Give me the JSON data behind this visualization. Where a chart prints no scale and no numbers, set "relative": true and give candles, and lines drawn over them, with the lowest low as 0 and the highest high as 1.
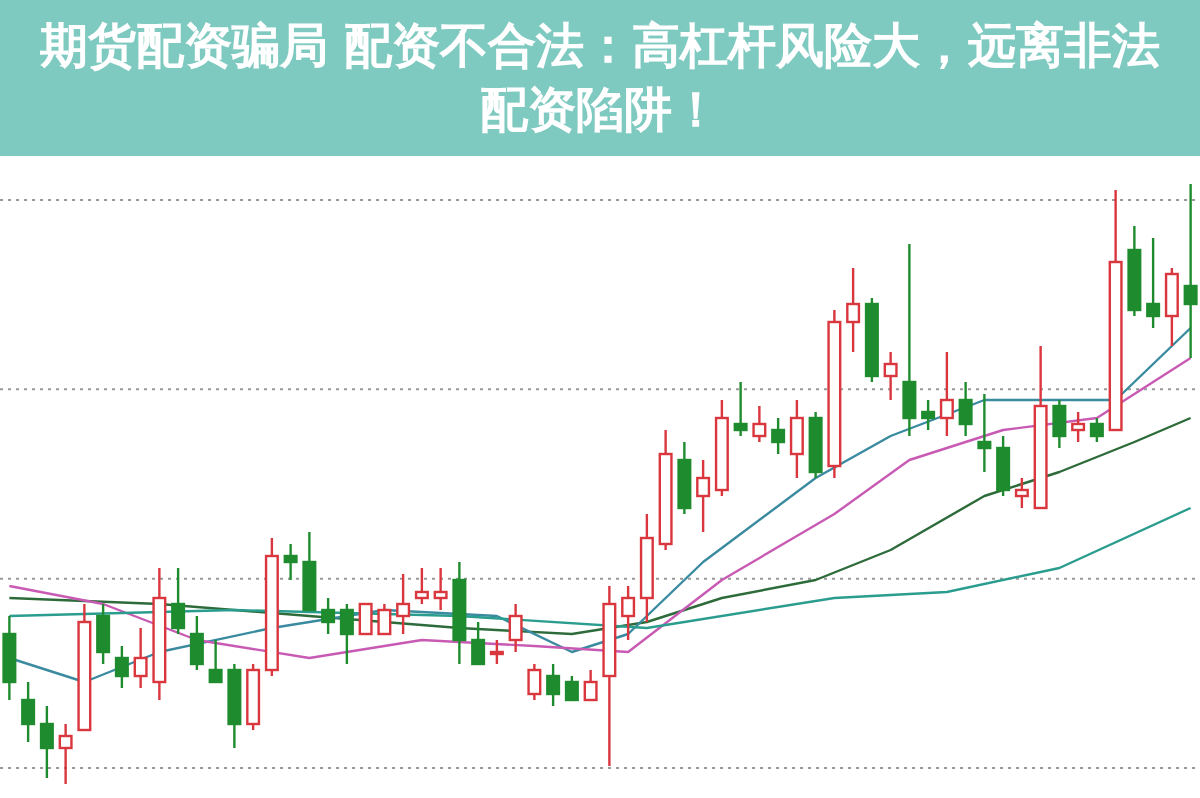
{
  "chart_data": {
    "type": "candlestick",
    "title": "期货配资骗局 配资不合法：高杠杆风险大，远离非法配资陷阱！",
    "relative": true,
    "grid": "y",
    "categories": [
      null,
      null,
      null,
      null,
      null,
      null,
      null,
      null,
      null,
      null,
      null,
      null,
      null,
      null,
      null,
      null,
      null,
      null,
      null,
      null,
      null,
      null,
      null,
      null,
      null,
      null,
      null,
      null,
      null,
      null,
      null,
      null,
      null,
      null,
      null,
      null,
      null,
      null,
      null,
      null,
      null,
      null,
      null,
      null,
      null,
      null,
      null,
      null,
      null,
      null,
      null,
      null,
      null,
      null,
      null,
      null,
      null,
      null,
      null,
      null,
      null,
      null,
      null,
      null
    ],
    "ohlc": [
      [
        0.25,
        0.28,
        0.14,
        0.17
      ],
      [
        0.14,
        0.17,
        0.07,
        0.1
      ],
      [
        0.1,
        0.13,
        0.01,
        0.06
      ],
      [
        0.06,
        0.1,
        0,
        0.08
      ],
      [
        0.09,
        0.3,
        0.09,
        0.27
      ],
      [
        0.28,
        0.3,
        0.2,
        0.22
      ],
      [
        0.21,
        0.23,
        0.16,
        0.18
      ],
      [
        0.18,
        0.26,
        0.16,
        0.21
      ],
      [
        0.17,
        0.36,
        0.14,
        0.31
      ],
      [
        0.3,
        0.36,
        0.25,
        0.26
      ],
      [
        0.25,
        0.28,
        0.19,
        0.2
      ],
      [
        0.19,
        0.24,
        0.17,
        0.17
      ],
      [
        0.19,
        0.2,
        0.06,
        0.1
      ],
      [
        0.1,
        0.2,
        0.09,
        0.19
      ],
      [
        0.19,
        0.41,
        0.18,
        0.38
      ],
      [
        0.38,
        0.4,
        0.34,
        0.37
      ],
      [
        0.37,
        0.42,
        0.29,
        0.29
      ],
      [
        0.29,
        0.31,
        0.25,
        0.27
      ],
      [
        0.29,
        0.3,
        0.2,
        0.25
      ],
      [
        0.25,
        0.3,
        0.25,
        0.3
      ],
      [
        0.25,
        0.3,
        0.25,
        0.29
      ],
      [
        0.28,
        0.35,
        0.25,
        0.3
      ],
      [
        0.31,
        0.36,
        0.3,
        0.32
      ],
      [
        0.31,
        0.36,
        0.29,
        0.32
      ],
      [
        0.34,
        0.37,
        0.2,
        0.24
      ],
      [
        0.24,
        0.27,
        0.2,
        0.2
      ],
      [
        0.22,
        0.24,
        0.2,
        0.22
      ],
      [
        0.24,
        0.3,
        0.22,
        0.28
      ],
      [
        0.15,
        0.2,
        0.14,
        0.19
      ],
      [
        0.18,
        0.2,
        0.13,
        0.15
      ],
      [
        0.17,
        0.18,
        0.14,
        0.14
      ],
      [
        0.14,
        0.19,
        0.14,
        0.17
      ],
      [
        0.18,
        0.33,
        0.03,
        0.3
      ],
      [
        0.28,
        0.33,
        0.24,
        0.31
      ],
      [
        0.31,
        0.45,
        0.27,
        0.41
      ],
      [
        0.4,
        0.59,
        0.39,
        0.55
      ],
      [
        0.54,
        0.57,
        0.45,
        0.46
      ],
      [
        0.48,
        0.54,
        0.42,
        0.51
      ],
      [
        0.49,
        0.64,
        0.48,
        0.61
      ],
      [
        0.6,
        0.67,
        0.58,
        0.59
      ],
      [
        0.58,
        0.63,
        0.57,
        0.6
      ],
      [
        0.59,
        0.61,
        0.55,
        0.57
      ],
      [
        0.55,
        0.64,
        0.51,
        0.61
      ],
      [
        0.61,
        0.62,
        0.51,
        0.52
      ],
      [
        0.53,
        0.79,
        0.51,
        0.77
      ],
      [
        0.77,
        0.86,
        0.72,
        0.8
      ],
      [
        0.8,
        0.81,
        0.67,
        0.68
      ],
      [
        0.68,
        0.72,
        0.64,
        0.7
      ],
      [
        0.67,
        0.9,
        0.58,
        0.61
      ],
      [
        0.62,
        0.64,
        0.59,
        0.61
      ],
      [
        0.61,
        0.72,
        0.58,
        0.64
      ],
      [
        0.64,
        0.67,
        0.58,
        0.6
      ],
      [
        0.57,
        0.65,
        0.52,
        0.56
      ],
      [
        0.56,
        0.58,
        0.48,
        0.49
      ],
      [
        0.48,
        0.51,
        0.46,
        0.49
      ],
      [
        0.46,
        0.73,
        0.46,
        0.63
      ],
      [
        0.63,
        0.64,
        0.56,
        0.58
      ],
      [
        0.59,
        0.62,
        0.57,
        0.6
      ],
      [
        0.6,
        0.61,
        0.57,
        0.58
      ],
      [
        0.59,
        0.99,
        0.59,
        0.87
      ],
      [
        0.89,
        0.93,
        0.78,
        0.79
      ],
      [
        0.8,
        0.91,
        0.76,
        0.78
      ],
      [
        0.78,
        0.86,
        0.73,
        0.85
      ],
      [
        0.83,
        1,
        0.71,
        0.8
      ]
    ],
    "colors": [
      "#1e8c2e",
      "#1e8c2e",
      "#1e8c2e",
      "#d9363e",
      "#d9363e",
      "#1e8c2e",
      "#1e8c2e",
      "#d9363e",
      "#d9363e",
      "#1e8c2e",
      "#1e8c2e",
      "#1e8c2e",
      "#1e8c2e",
      "#d9363e",
      "#d9363e",
      "#1e8c2e",
      "#1e8c2e",
      "#1e8c2e",
      "#1e8c2e",
      "#d9363e",
      "#d9363e",
      "#d9363e",
      "#d9363e",
      "#d9363e",
      "#1e8c2e",
      "#1e8c2e",
      "#d9363e",
      "#d9363e",
      "#d9363e",
      "#1e8c2e",
      "#1e8c2e",
      "#d9363e",
      "#d9363e",
      "#d9363e",
      "#d9363e",
      "#d9363e",
      "#1e8c2e",
      "#d9363e",
      "#d9363e",
      "#1e8c2e",
      "#d9363e",
      "#1e8c2e",
      "#d9363e",
      "#1e8c2e",
      "#d9363e",
      "#d9363e",
      "#1e8c2e",
      "#d9363e",
      "#1e8c2e",
      "#1e8c2e",
      "#d9363e",
      "#1e8c2e",
      "#1e8c2e",
      "#1e8c2e",
      "#d9363e",
      "#d9363e",
      "#1e8c2e",
      "#d9363e",
      "#1e8c2e",
      "#d9363e",
      "#1e8c2e",
      "#1e8c2e",
      "#d9363e",
      "#1e8c2e"
    ],
    "series": [
      {
        "type": "line",
        "color": "#2e6b3a",
        "values": [
          0.31,
          null,
          null,
          null,
          null,
          null,
          null,
          null,
          0.3,
          null,
          null,
          null,
          null,
          null,
          null,
          null,
          0.28,
          null,
          null,
          null,
          null,
          null,
          null,
          null,
          0.26,
          null,
          null,
          null,
          null,
          null,
          0.25,
          null,
          null,
          null,
          0.27,
          null,
          null,
          null,
          0.31,
          null,
          null,
          null,
          null,
          0.34,
          null,
          null,
          null,
          0.39,
          null,
          null,
          null,
          null,
          0.48,
          null,
          null,
          null,
          0.52,
          null,
          null,
          null,
          0.57,
          null,
          null,
          0.61
        ]
      },
      {
        "type": "line",
        "color": "#3a8aa0",
        "values": [
          0.21,
          null,
          null,
          null,
          0.17,
          null,
          null,
          null,
          0.22,
          null,
          null,
          null,
          null,
          null,
          0.26,
          null,
          null,
          null,
          null,
          null,
          0.29,
          null,
          null,
          null,
          null,
          null,
          0.28,
          null,
          null,
          null,
          0.22,
          null,
          null,
          0.25,
          null,
          null,
          null,
          0.37,
          null,
          null,
          null,
          null,
          null,
          0.51,
          null,
          null,
          null,
          0.58,
          null,
          null,
          null,
          null,
          0.64,
          null,
          null,
          null,
          null,
          null,
          null,
          0.64,
          null,
          null,
          null,
          0.76
        ]
      },
      {
        "type": "line",
        "color": "#c85ab4",
        "values": [
          0.33,
          null,
          null,
          null,
          null,
          0.3,
          null,
          null,
          null,
          null,
          0.24,
          null,
          null,
          null,
          null,
          null,
          0.21,
          null,
          null,
          null,
          null,
          null,
          0.24,
          null,
          null,
          null,
          null,
          null,
          0.23,
          null,
          null,
          null,
          null,
          0.22,
          null,
          null,
          null,
          null,
          0.34,
          null,
          null,
          null,
          null,
          null,
          0.45,
          null,
          null,
          null,
          0.54,
          null,
          null,
          null,
          null,
          0.59,
          null,
          null,
          null,
          null,
          0.61,
          null,
          null,
          null,
          null,
          0.71
        ]
      },
      {
        "type": "line",
        "color": "#2a9d8f",
        "values": [
          0.28,
          null,
          null,
          null,
          null,
          null,
          null,
          null,
          null,
          null,
          null,
          null,
          0.29,
          null,
          null,
          null,
          null,
          null,
          null,
          null,
          null,
          null,
          null,
          null,
          0.28,
          null,
          null,
          null,
          null,
          null,
          null,
          null,
          null,
          null,
          0.26,
          null,
          null,
          null,
          null,
          null,
          null,
          null,
          null,
          null,
          0.31,
          null,
          null,
          null,
          null,
          null,
          0.32,
          null,
          null,
          null,
          null,
          null,
          0.36,
          null,
          null,
          null,
          null,
          null,
          null,
          0.46
        ]
      }
    ]
  }
}
